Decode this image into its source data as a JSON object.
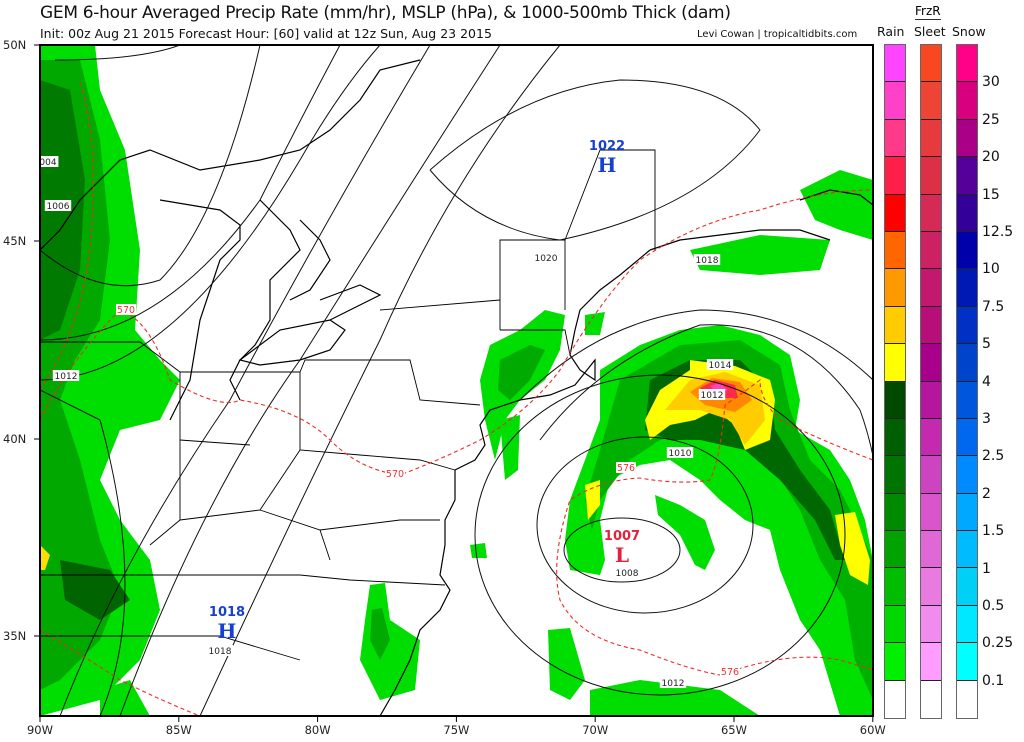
{
  "header": {
    "title": "GEM 6-hour Averaged Precip Rate (mm/hr), MSLP (hPa), & 1000-500mb Thick (dam)",
    "subtitle": "Init: 00z Aug 21 2015   Forecast Hour: [60]   valid at 12z Sun, Aug 23 2015",
    "credit": "Levi Cowan | tropicaltidbits.com"
  },
  "colorbar": {
    "headers": {
      "rain": "Rain",
      "frzr": "FrzR",
      "sleet": "Sleet",
      "snow": "Snow"
    },
    "labels": [
      "30",
      "25",
      "20",
      "15",
      "12.5",
      "10",
      "7.5",
      "5",
      "4",
      "3",
      "2.5",
      "2",
      "1.5",
      "1",
      "0.5",
      "0.25",
      "0.1"
    ],
    "rain_colors": [
      "#ff44ff",
      "#ff40c8",
      "#ff3a88",
      "#ff1f48",
      "#ff0000",
      "#ff6600",
      "#ff9900",
      "#ffcc00",
      "#ffff00",
      "#004a00",
      "#005f00",
      "#007400",
      "#008a00",
      "#00a300",
      "#00bd00",
      "#00d800",
      "#00f000",
      "#ffffff"
    ],
    "sleet_colors": [
      "#f84822",
      "#ee4436",
      "#e63a3c",
      "#dc3046",
      "#d42a55",
      "#cc2263",
      "#c2186e",
      "#b80e7a",
      "#a8008a",
      "#b5169e",
      "#c42aaf",
      "#cc44c0",
      "#d855cc",
      "#e068d6",
      "#e87ae0",
      "#f08ced",
      "#ff9cff",
      "#ffffff"
    ],
    "snow_colors": [
      "#ff0088",
      "#d90080",
      "#aa0088",
      "#550099",
      "#330099",
      "#0000aa",
      "#0018b4",
      "#0030c4",
      "#0044cc",
      "#0056dd",
      "#0068ee",
      "#008aff",
      "#00a8ff",
      "#00bcff",
      "#00d0f5",
      "#00e8ff",
      "#00ffff",
      "#ffffff"
    ]
  },
  "axes": {
    "lat_labels": [
      "50N",
      "45N",
      "40N",
      "35N"
    ],
    "lon_labels": [
      "90W",
      "85W",
      "80W",
      "75W",
      "70W",
      "65W",
      "60W"
    ]
  },
  "map": {
    "highs": [
      {
        "pressure": "1022",
        "letter": "H"
      },
      {
        "pressure": "1018",
        "letter": "H"
      }
    ],
    "low": {
      "pressure": "1007",
      "letter": "L"
    },
    "isobar_labels": [
      "004",
      "1006",
      "1012",
      "1020",
      "1018",
      "1014",
      "1012",
      "1010",
      "1008",
      "1012",
      "1018"
    ],
    "thickness_labels": [
      "570",
      "570",
      "576",
      "576"
    ],
    "colors": {
      "high": "#1540d0",
      "low": "#e0223a",
      "thickness": "#ee2a2a"
    }
  }
}
